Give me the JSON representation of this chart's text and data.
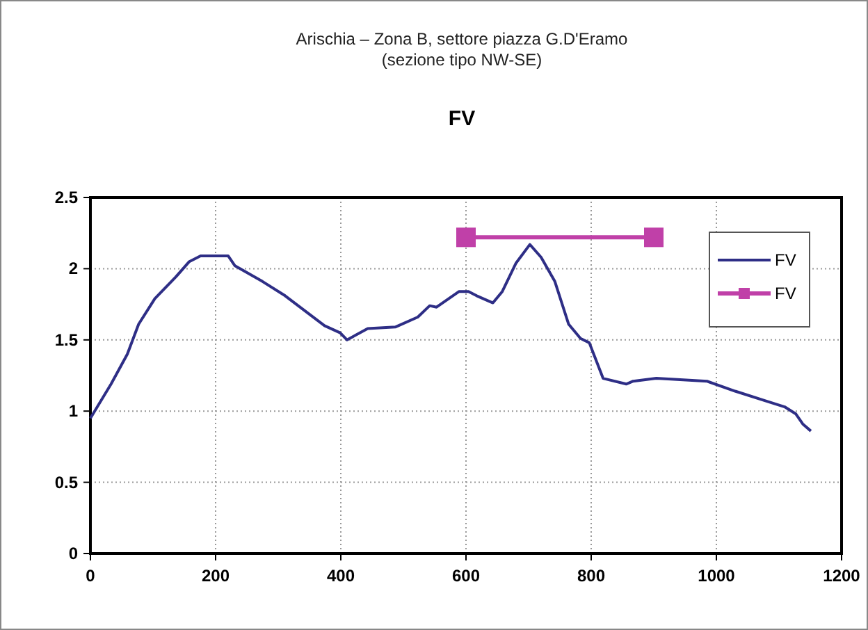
{
  "chart_data": {
    "type": "line",
    "title": "Arischia – Zona B, settore piazza G.D'Eramo\n(sezione tipo NW-SE)",
    "subtitle": "FV",
    "xlim": [
      0,
      1200
    ],
    "xticks": [
      0,
      200,
      400,
      600,
      800,
      1000,
      1200
    ],
    "ylim": [
      0,
      2.5
    ],
    "yticks": [
      0,
      0.5,
      1,
      1.5,
      2,
      2.5
    ],
    "grid": true,
    "legend": "top right",
    "series": [
      {
        "name": "FV",
        "color": "#2e2e86",
        "marker": "none",
        "x": [
          0,
          11,
          33,
          59,
          77,
          103,
          136,
          158,
          176,
          220,
          231,
          275,
          311,
          374,
          399,
          410,
          443,
          487,
          523,
          542,
          553,
          589,
          604,
          617,
          643,
          658,
          680,
          702,
          720,
          742,
          764,
          783,
          797,
          819,
          856,
          867,
          904,
          985,
          1030,
          1080,
          1109,
          1127,
          1138,
          1151
        ],
        "values": [
          0.95,
          1.03,
          1.19,
          1.4,
          1.61,
          1.79,
          1.94,
          2.05,
          2.09,
          2.09,
          2.02,
          1.91,
          1.81,
          1.6,
          1.55,
          1.5,
          1.58,
          1.59,
          1.66,
          1.74,
          1.73,
          1.84,
          1.84,
          1.81,
          1.76,
          1.84,
          2.04,
          2.17,
          2.08,
          1.91,
          1.61,
          1.51,
          1.48,
          1.23,
          1.19,
          1.21,
          1.23,
          1.21,
          1.14,
          1.07,
          1.03,
          0.98,
          0.91,
          0.86
        ]
      },
      {
        "name": "FV",
        "color": "#c040a8",
        "marker": "square",
        "x": [
          600,
          900
        ],
        "values": [
          2.22,
          2.22
        ]
      }
    ]
  }
}
